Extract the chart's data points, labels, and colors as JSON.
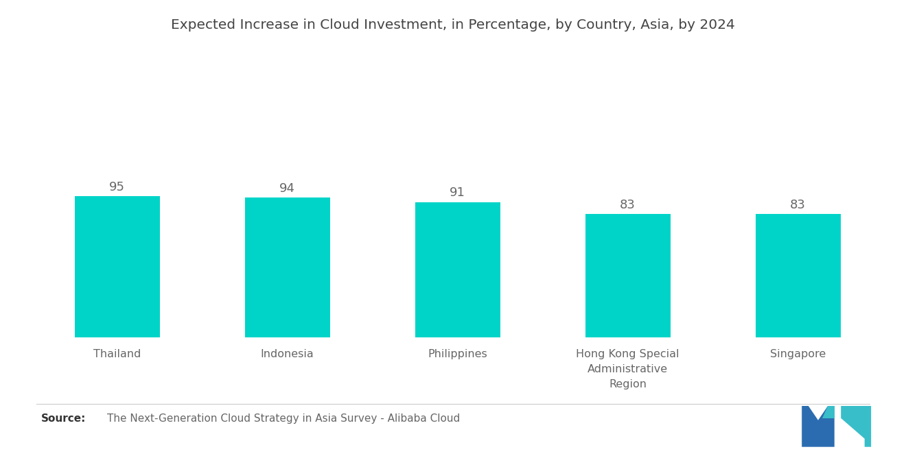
{
  "title": "Expected Increase in Cloud Investment, in Percentage, by Country, Asia, by 2024",
  "categories": [
    "Thailand",
    "Indonesia",
    "Philippines",
    "Hong Kong Special\nAdministrative\nRegion",
    "Singapore"
  ],
  "values": [
    95,
    94,
    91,
    83,
    83
  ],
  "bar_color": "#00D4C8",
  "background_color": "#ffffff",
  "title_fontsize": 14.5,
  "label_fontsize": 11.5,
  "value_fontsize": 13,
  "source_text": "The Next-Generation Cloud Strategy in Asia Survey - Alibaba Cloud",
  "source_bold": "Source:",
  "ylim": [
    0,
    190
  ],
  "bar_width": 0.5,
  "logo_blue": "#2B6CB0",
  "logo_teal": "#38BEC9"
}
